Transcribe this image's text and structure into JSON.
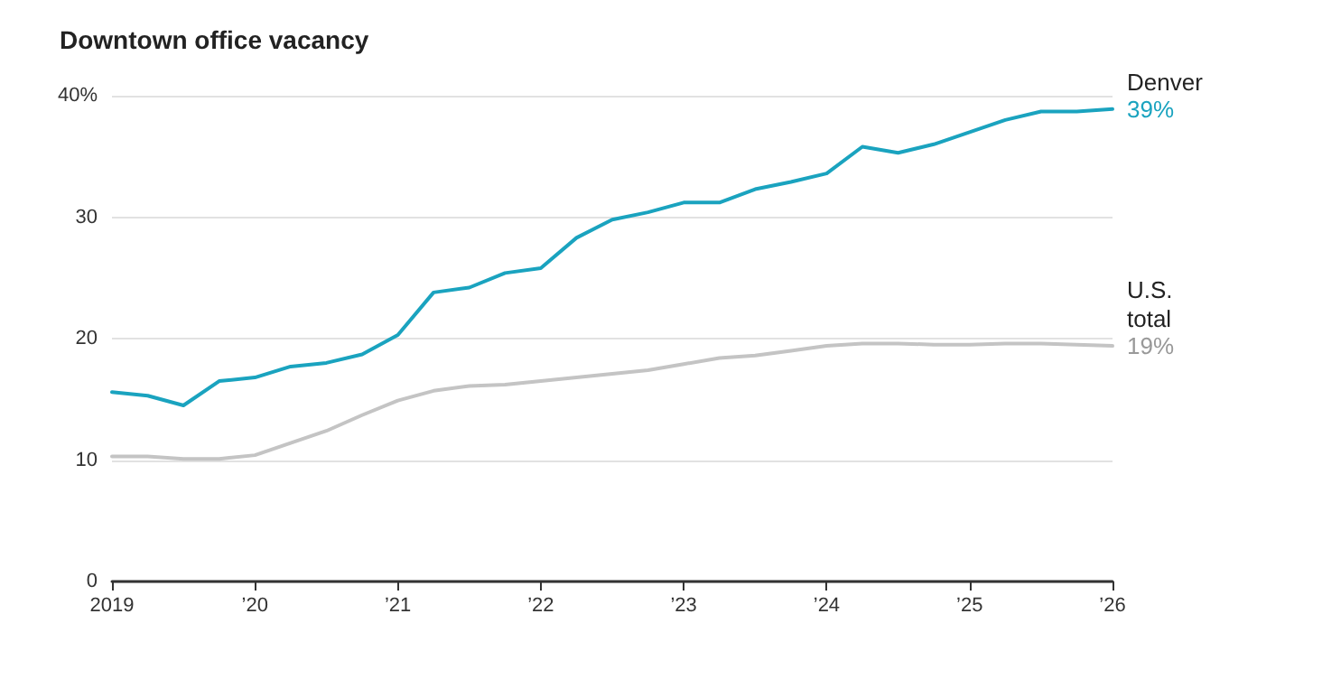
{
  "chart_data": {
    "type": "line",
    "title": "Downtown office vacancy",
    "x": [
      2019,
      2019.25,
      2019.5,
      2019.75,
      2020,
      2020.25,
      2020.5,
      2020.75,
      2021,
      2021.25,
      2021.5,
      2021.75,
      2022,
      2022.25,
      2022.5,
      2022.75,
      2023,
      2023.25,
      2023.5,
      2023.75,
      2024,
      2024.25,
      2024.5,
      2024.75,
      2025,
      2025.25,
      2025.5,
      2025.75,
      2026
    ],
    "series": [
      {
        "name": "Denver",
        "color": "#1aa3bf",
        "values": [
          15.6,
          15.3,
          14.5,
          16.5,
          16.8,
          17.7,
          18.0,
          18.7,
          20.3,
          23.8,
          24.2,
          25.4,
          25.8,
          28.3,
          29.8,
          30.4,
          31.2,
          31.2,
          32.3,
          32.9,
          33.6,
          35.8,
          35.3,
          36.0,
          37.0,
          38.0,
          38.7,
          38.7,
          38.9
        ],
        "value_labels": [
          null,
          null,
          null,
          null,
          null,
          null,
          null,
          null,
          null,
          null,
          null,
          null,
          null,
          null,
          null,
          null,
          null,
          null,
          null,
          null,
          null,
          null,
          null,
          null,
          null,
          null,
          null,
          null,
          "39%"
        ]
      },
      {
        "name": "U.S. total",
        "color": "#c4c4c4",
        "values": [
          10.3,
          10.3,
          10.1,
          10.1,
          10.4,
          11.4,
          12.4,
          13.7,
          14.9,
          15.7,
          16.1,
          16.2,
          16.5,
          16.8,
          17.1,
          17.4,
          17.9,
          18.4,
          18.6,
          19.0,
          19.4,
          19.6,
          19.6,
          19.5,
          19.5,
          19.6,
          19.6,
          19.5,
          19.4
        ],
        "value_labels": [
          null,
          null,
          null,
          null,
          null,
          null,
          null,
          null,
          null,
          null,
          null,
          null,
          null,
          null,
          null,
          null,
          null,
          null,
          null,
          null,
          null,
          null,
          null,
          null,
          null,
          null,
          null,
          null,
          "19%"
        ]
      }
    ],
    "xlim": [
      2019,
      2026
    ],
    "xticks": [
      2019,
      {
        "value": 2020,
        "label": "’20"
      },
      {
        "value": 2021,
        "label": "’21"
      },
      {
        "value": 2022,
        "label": "’22"
      },
      {
        "value": 2023,
        "label": "’23"
      },
      {
        "value": 2024,
        "label": "’24"
      },
      {
        "value": 2025,
        "label": "’25"
      },
      {
        "value": 2026,
        "label": "’26"
      }
    ],
    "ylim": [
      0,
      40
    ],
    "yticks": [
      0,
      10,
      20,
      30,
      {
        "value": 40,
        "label": "40%"
      }
    ],
    "grid": "y",
    "line_style": "solid",
    "legend": false
  }
}
